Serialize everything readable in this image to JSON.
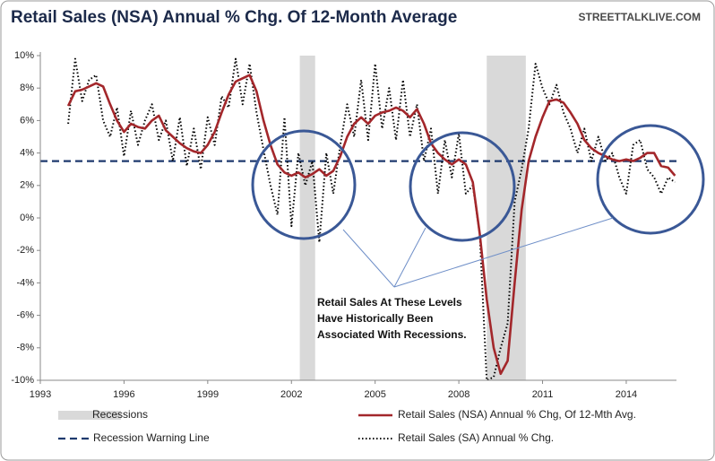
{
  "chart_data": {
    "type": "line",
    "title": "Retail Sales (NSA) Annual % Chg. Of 12-Month Average",
    "source": "STREETTALKLIVE.COM",
    "annotation": [
      "Retail Sales At These Levels",
      "Have Historically Been",
      "Associated With Recessions."
    ],
    "xlim": [
      1993,
      2015.8
    ],
    "xticks": [
      1993,
      1996,
      1999,
      2002,
      2005,
      2008,
      2011,
      2014
    ],
    "ylim": [
      -10,
      10
    ],
    "yticks": [
      {
        "value": -10,
        "label": "-10%"
      },
      {
        "value": -8,
        "label": "-8%"
      },
      {
        "value": -6,
        "label": "-6%"
      },
      {
        "value": -4,
        "label": "-4%"
      },
      {
        "value": -2,
        "label": "-2%"
      },
      {
        "value": 0,
        "label": "0%"
      },
      {
        "value": 2,
        "label": "2%"
      },
      {
        "value": 4,
        "label": "4%"
      },
      {
        "value": 6,
        "label": "6%"
      },
      {
        "value": 8,
        "label": "8%"
      },
      {
        "value": 10,
        "label": "10%"
      }
    ],
    "recessions": {
      "name": "Recessions",
      "color": "#d9d9d9",
      "spans": [
        [
          2002.3,
          2002.85
        ],
        [
          2009.0,
          2010.4
        ]
      ]
    },
    "warning": {
      "name": "Recession Warning Line",
      "value": 3.5,
      "color": "#1f3a6e"
    },
    "x": [
      1994,
      1994.25,
      1994.5,
      1994.75,
      1995,
      1995.25,
      1995.5,
      1995.75,
      1996,
      1996.25,
      1996.5,
      1996.75,
      1997,
      1997.25,
      1997.5,
      1997.75,
      1998,
      1998.25,
      1998.5,
      1998.75,
      1999,
      1999.25,
      1999.5,
      1999.75,
      2000,
      2000.25,
      2000.5,
      2000.75,
      2001,
      2001.25,
      2001.5,
      2001.75,
      2002,
      2002.25,
      2002.5,
      2002.75,
      2003,
      2003.25,
      2003.5,
      2003.75,
      2004,
      2004.25,
      2004.5,
      2004.75,
      2005,
      2005.25,
      2005.5,
      2005.75,
      2006,
      2006.25,
      2006.5,
      2006.75,
      2007,
      2007.25,
      2007.5,
      2007.75,
      2008,
      2008.25,
      2008.5,
      2008.75,
      2009,
      2009.25,
      2009.5,
      2009.75,
      2010,
      2010.25,
      2010.5,
      2010.75,
      2011,
      2011.25,
      2011.5,
      2011.75,
      2012,
      2012.25,
      2012.5,
      2012.75,
      2013,
      2013.25,
      2013.5,
      2013.75,
      2014,
      2014.25,
      2014.5,
      2014.75,
      2015,
      2015.25,
      2015.5,
      2015.75
    ],
    "series": [
      {
        "name": "Retail Sales (NSA) Annual % Chg, Of 12-Mth Avg.",
        "color": "#a3272b",
        "style": "solid",
        "values": [
          6.9,
          7.8,
          7.9,
          8.1,
          8.3,
          8.1,
          7.0,
          6.0,
          5.3,
          5.8,
          5.6,
          5.5,
          6.0,
          6.3,
          5.4,
          5.0,
          4.6,
          4.3,
          4.1,
          4.0,
          4.5,
          5.3,
          6.5,
          7.6,
          8.4,
          8.6,
          8.8,
          7.8,
          6.0,
          4.5,
          3.3,
          2.8,
          2.6,
          2.8,
          2.5,
          2.7,
          3.0,
          2.6,
          2.9,
          3.8,
          5.0,
          5.8,
          6.2,
          5.8,
          6.3,
          6.5,
          6.6,
          6.8,
          6.6,
          6.2,
          6.7,
          5.8,
          4.6,
          4.0,
          3.6,
          3.3,
          3.6,
          3.3,
          2.2,
          -1.0,
          -5.0,
          -8.0,
          -9.6,
          -8.8,
          -4.0,
          0.5,
          3.5,
          5.0,
          6.2,
          7.2,
          7.3,
          7.1,
          6.5,
          5.8,
          4.8,
          4.3,
          4.0,
          3.8,
          3.6,
          3.5,
          3.6,
          3.5,
          3.7,
          4.0,
          4.0,
          3.2,
          3.1,
          2.6
        ]
      },
      {
        "name": "Retail Sales (SA) Annual % Chg.",
        "color": "#000000",
        "style": "dotted",
        "values": [
          5.8,
          9.8,
          7.2,
          8.5,
          8.8,
          6.0,
          5.0,
          6.8,
          3.8,
          6.6,
          4.5,
          6.0,
          7.0,
          4.8,
          6.0,
          3.5,
          6.2,
          3.2,
          5.5,
          3.0,
          6.2,
          4.5,
          7.5,
          6.8,
          9.8,
          7.0,
          9.5,
          6.5,
          4.2,
          2.0,
          0.2,
          6.2,
          -0.5,
          4.0,
          2.0,
          3.5,
          -1.5,
          4.0,
          1.5,
          4.5,
          7.0,
          5.0,
          8.5,
          4.8,
          9.5,
          5.5,
          8.0,
          4.8,
          8.5,
          5.0,
          7.0,
          3.5,
          5.5,
          1.5,
          4.8,
          2.5,
          5.2,
          1.5,
          2.0,
          -1.0,
          -10,
          -9.8,
          -8.0,
          -6.5,
          1.0,
          3.0,
          5.5,
          9.5,
          8.0,
          7.0,
          8.2,
          6.5,
          5.5,
          4.0,
          5.5,
          3.5,
          5.0,
          3.5,
          4.0,
          2.5,
          1.5,
          4.5,
          4.8,
          3.0,
          2.5,
          1.5,
          2.5,
          2.2
        ]
      }
    ]
  }
}
